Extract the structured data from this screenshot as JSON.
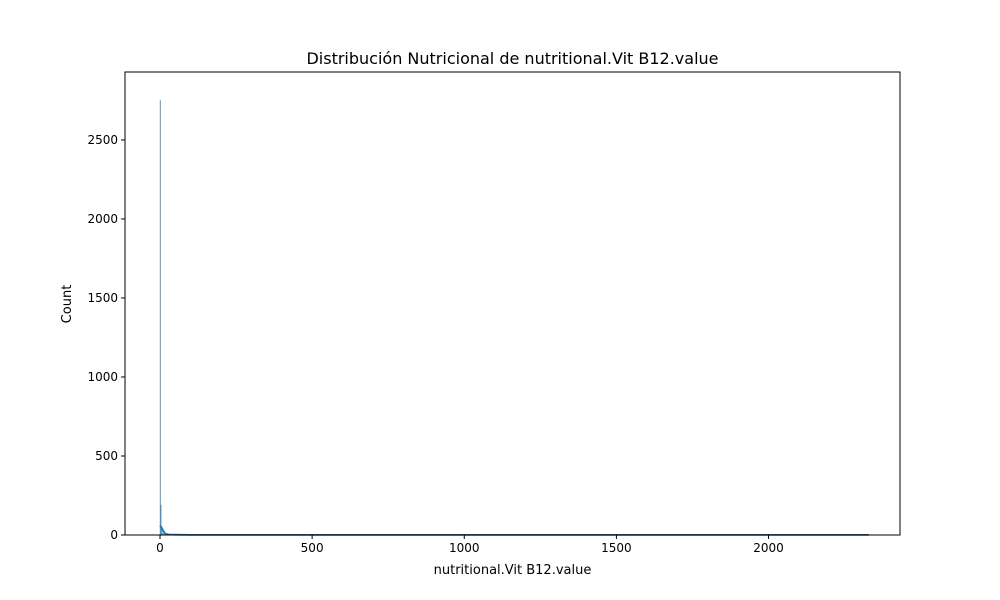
{
  "chart_data": {
    "type": "bar",
    "title": "Distribución Nutricional de nutritional.Vit B12.value",
    "xlabel": "nutritional.Vit B12.value",
    "ylabel": "Count",
    "xlim": [
      -115,
      2432
    ],
    "ylim": [
      0,
      2930
    ],
    "x_ticks": [
      0,
      500,
      1000,
      1500,
      2000
    ],
    "y_ticks": [
      0,
      500,
      1000,
      1500,
      2000,
      2500
    ],
    "grid": false,
    "bar_color": "#1f77b4",
    "line_color": "#1f77b4",
    "histogram": {
      "bins": [
        {
          "x0": 0,
          "x1": 2,
          "count": 2750
        },
        {
          "x0": 2,
          "x1": 4,
          "count": 190
        },
        {
          "x0": 4,
          "x1": 8,
          "count": 40
        },
        {
          "x0": 8,
          "x1": 20,
          "count": 10
        }
      ]
    },
    "kde": {
      "x": [
        0,
        5,
        10,
        15,
        20,
        30,
        50,
        100,
        500,
        1000,
        1500,
        2000,
        2330
      ],
      "y": [
        60,
        48,
        30,
        14,
        6,
        3,
        2,
        1,
        1,
        1,
        1,
        1,
        1
      ]
    }
  }
}
